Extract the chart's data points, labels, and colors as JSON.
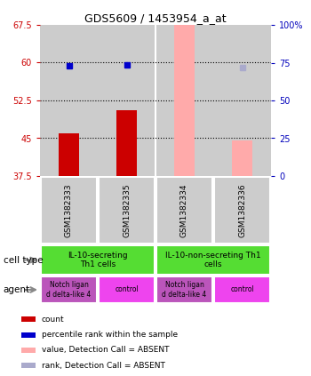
{
  "title": "GDS5609 / 1453954_a_at",
  "samples": [
    "GSM1382333",
    "GSM1382335",
    "GSM1382334",
    "GSM1382336"
  ],
  "ylim": [
    37.5,
    67.5
  ],
  "yticks_left": [
    37.5,
    45,
    52.5,
    60,
    67.5
  ],
  "yticks_right_vals": [
    0,
    25,
    50,
    75,
    100
  ],
  "yticks_right_labels": [
    "0",
    "25",
    "50",
    "75",
    "100%"
  ],
  "red_bar_heights": [
    46.0,
    50.5,
    null,
    null
  ],
  "pink_bar_heights": [
    null,
    null,
    68.0,
    44.5
  ],
  "bar_base": 37.5,
  "bar_width": 0.35,
  "blue_dot_values": [
    59.3,
    59.5,
    null,
    null
  ],
  "lightblue_dot_values": [
    null,
    null,
    null,
    59.0
  ],
  "red_color": "#cc0000",
  "pink_color": "#ffaaaa",
  "blue_color": "#0000cc",
  "lightblue_color": "#aaaacc",
  "bar_bg_color": "#cccccc",
  "dotted_line_y": [
    45,
    52.5,
    60
  ],
  "cell_type_labels": [
    "IL-10-secreting\nTh1 cells",
    "IL-10-non-secreting Th1\ncells"
  ],
  "cell_type_color": "#55dd33",
  "agent_labels": [
    "Notch ligan\nd delta-like 4",
    "control",
    "Notch ligan\nd delta-like 4",
    "control"
  ],
  "agent_notch_color": "#bb55bb",
  "agent_ctrl_color": "#ee44ee",
  "ylabel_left_color": "#cc0000",
  "ylabel_right_color": "#0000bb",
  "legend_items": [
    {
      "label": "count",
      "color": "#cc0000"
    },
    {
      "label": "percentile rank within the sample",
      "color": "#0000cc"
    },
    {
      "label": "value, Detection Call = ABSENT",
      "color": "#ffaaaa"
    },
    {
      "label": "rank, Detection Call = ABSENT",
      "color": "#aaaacc"
    }
  ]
}
